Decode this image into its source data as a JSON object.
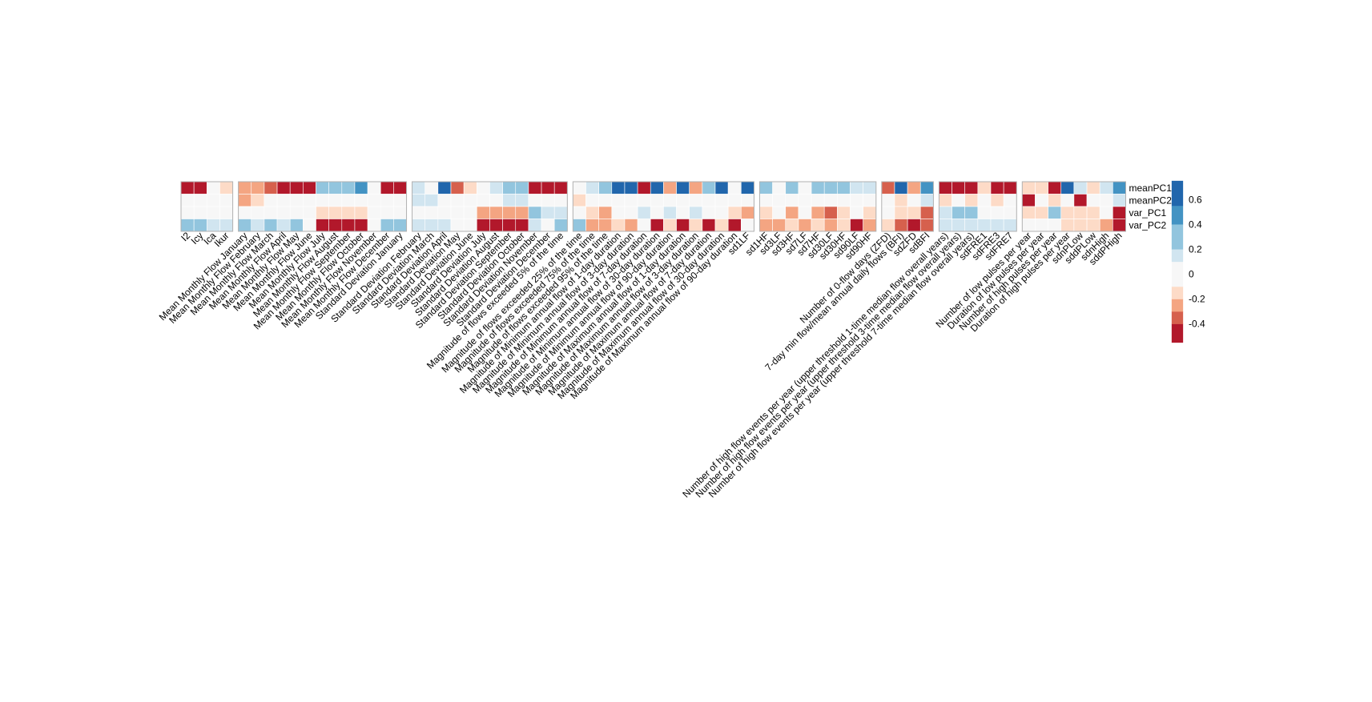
{
  "chart_data": {
    "type": "heatmap",
    "rows": [
      "meanPC1",
      "meanPC2",
      "var_PC1",
      "var_PC2"
    ],
    "color_scale": {
      "min": -0.55,
      "max": 0.75,
      "ticks": [
        0.6,
        0.4,
        0.2,
        0,
        -0.2,
        -0.4
      ],
      "tick_labels": [
        "0.6",
        "0.4",
        "0.2",
        "0",
        "-0.2",
        "-0.4"
      ],
      "bins": [
        {
          "lo": -0.55,
          "color": "#b2182b"
        },
        {
          "lo": -0.4,
          "color": "#d6604d"
        },
        {
          "lo": -0.3,
          "color": "#f4a582"
        },
        {
          "lo": -0.2,
          "color": "#fddbc7"
        },
        {
          "lo": -0.1,
          "color": "#f7f7f7"
        },
        {
          "lo": 0.1,
          "color": "#d1e5f0"
        },
        {
          "lo": 0.2,
          "color": "#92c5de"
        },
        {
          "lo": 0.4,
          "color": "#4393c3"
        },
        {
          "lo": 0.55,
          "color": "#2166ac"
        }
      ]
    },
    "groups": [
      {
        "columns": [
          {
            "label": "I2",
            "values": [
              -0.42,
              -0.05,
              0.05,
              0.25
            ]
          },
          {
            "label": "Icy",
            "values": [
              -0.42,
              -0.05,
              0.05,
              0.25
            ]
          },
          {
            "label": "Ica",
            "values": [
              -0.05,
              -0.05,
              0.05,
              0.15
            ]
          },
          {
            "label": "Ikur",
            "values": [
              -0.15,
              -0.05,
              0.05,
              0.15
            ]
          }
        ]
      },
      {
        "columns": [
          {
            "label": "Mean Monthly Flow  January",
            "values": [
              -0.25,
              -0.25,
              -0.05,
              0.25
            ]
          },
          {
            "label": "Mean Monthly Flow  February",
            "values": [
              -0.25,
              -0.15,
              0.05,
              0.15
            ]
          },
          {
            "label": "Mean Monthly Flow  March",
            "values": [
              -0.35,
              -0.05,
              0.05,
              0.25
            ]
          },
          {
            "label": "Mean Monthly Flow  April",
            "values": [
              -0.42,
              -0.05,
              0.05,
              0.15
            ]
          },
          {
            "label": "Mean Monthly Flow  May",
            "values": [
              -0.5,
              -0.05,
              -0.05,
              0.25
            ]
          },
          {
            "label": "Mean Monthly Flow  June",
            "values": [
              -0.42,
              -0.05,
              0.05,
              -0.05
            ]
          },
          {
            "label": "Mean Monthly Flow  July",
            "values": [
              0.25,
              -0.05,
              -0.15,
              -0.5
            ]
          },
          {
            "label": "Mean Monthly Flow  August",
            "values": [
              0.25,
              -0.05,
              -0.15,
              -0.42
            ]
          },
          {
            "label": "Mean Monthly Flow  September",
            "values": [
              0.3,
              0.05,
              -0.15,
              -0.42
            ]
          },
          {
            "label": "Mean Monthly Flow  October",
            "values": [
              0.45,
              0.05,
              -0.15,
              -0.42
            ]
          },
          {
            "label": "Mean Monthly Flow  November",
            "values": [
              -0.05,
              -0.05,
              0.05,
              0.05
            ]
          },
          {
            "label": "Mean Monthly Flow  December",
            "values": [
              -0.42,
              -0.05,
              0.05,
              0.25
            ]
          },
          {
            "label": "Standard Deviation January",
            "values": [
              -0.42,
              -0.05,
              -0.05,
              0.25
            ]
          }
        ]
      },
      {
        "columns": [
          {
            "label": "Standard Deviation February",
            "values": [
              0.15,
              0.15,
              0.05,
              0.15
            ]
          },
          {
            "label": "Standard Deviation March",
            "values": [
              0.05,
              0.15,
              -0.05,
              0.15
            ]
          },
          {
            "label": "Standard Deviation April",
            "values": [
              0.6,
              0.05,
              0.05,
              0.15
            ]
          },
          {
            "label": "Standard Deviation May",
            "values": [
              -0.35,
              -0.05,
              0.05,
              0.05
            ]
          },
          {
            "label": "Standard Deviation June",
            "values": [
              -0.15,
              0.05,
              0.05,
              0.05
            ]
          },
          {
            "label": "Standard Deviation July",
            "values": [
              0.05,
              0.05,
              -0.25,
              -0.42
            ]
          },
          {
            "label": "Standard Deviation August",
            "values": [
              0.15,
              0.05,
              -0.25,
              -0.42
            ]
          },
          {
            "label": "Standard Deviation September",
            "values": [
              0.25,
              0.15,
              -0.25,
              -0.42
            ]
          },
          {
            "label": "Standard Deviation October",
            "values": [
              0.25,
              0.15,
              -0.25,
              -0.42
            ]
          },
          {
            "label": "Standard Deviation November",
            "values": [
              -0.5,
              -0.05,
              0.25,
              0.15
            ]
          },
          {
            "label": "Standard Deviation December",
            "values": [
              -0.5,
              0.05,
              0.15,
              -0.05
            ]
          },
          {
            "label": "Magnitude of flows exceeded 5% of the time",
            "values": [
              -0.42,
              0.05,
              0.15,
              0.25
            ]
          }
        ]
      },
      {
        "columns": [
          {
            "label": "Magnitude of flows exceeded 25% of the time",
            "values": [
              0.05,
              -0.15,
              -0.05,
              0.25
            ]
          },
          {
            "label": "Magnitude of flows exceeded 75% of the time",
            "values": [
              0.15,
              0.05,
              -0.15,
              -0.25
            ]
          },
          {
            "label": "Magnitude of flows exceeded 95% of the time",
            "values": [
              0.3,
              -0.05,
              -0.25,
              -0.25
            ]
          },
          {
            "label": "Magnitude of Minimum annual flow of 1-day duration",
            "values": [
              0.6,
              0.05,
              -0.05,
              -0.15
            ]
          },
          {
            "label": "Magnitude of Minimum annual flow of 3-day duration",
            "values": [
              0.6,
              0.05,
              -0.05,
              -0.25
            ]
          },
          {
            "label": "Magnitude of Minimum annual flow of 7-day duration",
            "values": [
              -0.42,
              -0.05,
              0.15,
              -0.05
            ]
          },
          {
            "label": "Magnitude of Minimum annual flow of 30-day duration",
            "values": [
              0.6,
              -0.05,
              -0.05,
              -0.42
            ]
          },
          {
            "label": "Magnitude of Minimum annual flow of 90-day duration",
            "values": [
              -0.25,
              -0.05,
              0.15,
              -0.15
            ]
          },
          {
            "label": "Magnitude of Maximum annual flow of 1-day duration",
            "values": [
              0.6,
              0.05,
              -0.05,
              -0.42
            ]
          },
          {
            "label": "Magnitude of Maximum annual flow of 3-day duration",
            "values": [
              -0.25,
              -0.05,
              0.15,
              -0.15
            ]
          },
          {
            "label": "Magnitude of Maximum annual flow of 7-day duration",
            "values": [
              0.3,
              0.05,
              -0.05,
              -0.42
            ]
          },
          {
            "label": "Magnitude of Maximum annual flow of 30-day duration",
            "values": [
              0.6,
              0.05,
              -0.05,
              -0.15
            ]
          },
          {
            "label": "Magnitude of Maximum annual flow of 90-day duration",
            "values": [
              -0.05,
              -0.05,
              -0.15,
              -0.5
            ]
          },
          {
            "label": "sd1LF",
            "values": [
              0.6,
              0.05,
              -0.25,
              0.05
            ]
          }
        ]
      },
      {
        "columns": [
          {
            "label": "sd1HF",
            "values": [
              0.25,
              0.05,
              -0.15,
              -0.25
            ]
          },
          {
            "label": "sd3LF",
            "values": [
              0.05,
              -0.05,
              0.05,
              -0.25
            ]
          },
          {
            "label": "sd3HF",
            "values": [
              0.25,
              0.05,
              -0.25,
              -0.15
            ]
          },
          {
            "label": "sd7LF",
            "values": [
              0.05,
              -0.05,
              0.05,
              -0.25
            ]
          },
          {
            "label": "sd7HF",
            "values": [
              0.25,
              0.05,
              -0.25,
              -0.15
            ]
          },
          {
            "label": "sd30LF",
            "values": [
              0.25,
              0.05,
              -0.35,
              -0.25
            ]
          },
          {
            "label": "sd30HF",
            "values": [
              0.25,
              0.05,
              -0.15,
              -0.15
            ]
          },
          {
            "label": "sd90LF",
            "values": [
              0.15,
              0.05,
              0.05,
              -0.42
            ]
          },
          {
            "label": "sd90HF",
            "values": [
              0.15,
              0.05,
              -0.15,
              -0.25
            ]
          }
        ]
      },
      {
        "columns": [
          {
            "label": "Number of 0-flow days (ZFD)",
            "values": [
              -0.35,
              0.05,
              -0.05,
              -0.15
            ]
          },
          {
            "label": "7-day min flow/mean annual daily flows (BFI)",
            "values": [
              0.6,
              -0.15,
              -0.15,
              -0.35
            ]
          },
          {
            "label": "sdZFD",
            "values": [
              -0.25,
              0.05,
              -0.15,
              -0.42
            ]
          },
          {
            "label": "sdBFI",
            "values": [
              0.45,
              0.15,
              -0.35,
              -0.35
            ]
          }
        ]
      },
      {
        "columns": [
          {
            "label": "Number of high flow events per year (upper threshold 1-time median flow overall years)",
            "values": [
              -0.42,
              -0.15,
              0.15,
              0.15
            ]
          },
          {
            "label": "Number of high flow events per year (upper threshold 3-time median flow overall years)",
            "values": [
              -0.5,
              -0.05,
              0.3,
              0.15
            ]
          },
          {
            "label": "Number of high flow events per year (upper threshold 7-time median flow overall years)",
            "values": [
              -0.5,
              -0.15,
              0.3,
              0.15
            ]
          },
          {
            "label": "sdFRE1",
            "values": [
              -0.15,
              -0.05,
              0.05,
              0.15
            ]
          },
          {
            "label": "sdFRE3",
            "values": [
              -0.42,
              -0.15,
              0.05,
              0.15
            ]
          },
          {
            "label": "sdFRE7",
            "values": [
              -0.5,
              -0.05,
              0.05,
              0.15
            ]
          }
        ]
      },
      {
        "columns": [
          {
            "label": "Number of low pulses per year",
            "values": [
              -0.15,
              -0.42,
              -0.15,
              0.05
            ]
          },
          {
            "label": "Duration of low pulses per year",
            "values": [
              -0.15,
              0.05,
              -0.15,
              0.05
            ]
          },
          {
            "label": "Number of high pulses per year",
            "values": [
              -0.42,
              -0.15,
              0.25,
              -0.05
            ]
          },
          {
            "label": "Duration of high pulses per year",
            "values": [
              0.6,
              0.05,
              -0.15,
              -0.15
            ]
          },
          {
            "label": "sdnPLow",
            "values": [
              0.15,
              -0.42,
              -0.15,
              -0.15
            ]
          },
          {
            "label": "sddPLow",
            "values": [
              -0.15,
              0.05,
              -0.15,
              -0.15
            ]
          },
          {
            "label": "sdnHigh",
            "values": [
              0.15,
              0.05,
              0.05,
              -0.25
            ]
          },
          {
            "label": "sddPHigh",
            "values": [
              0.45,
              0.15,
              -0.42,
              -0.42
            ]
          }
        ]
      }
    ]
  }
}
